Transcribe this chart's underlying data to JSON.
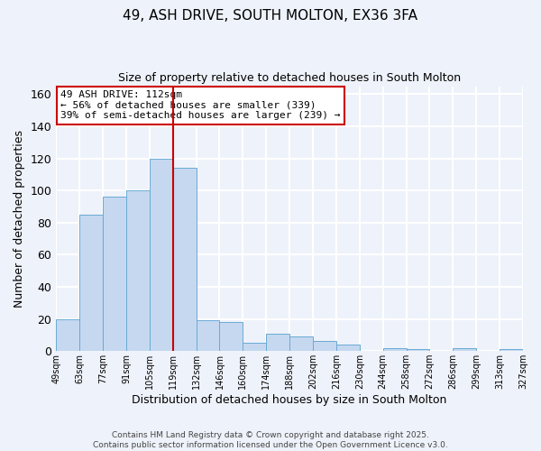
{
  "title": "49, ASH DRIVE, SOUTH MOLTON, EX36 3FA",
  "subtitle": "Size of property relative to detached houses in South Molton",
  "xlabel": "Distribution of detached houses by size in South Molton",
  "ylabel": "Number of detached properties",
  "bar_values": [
    20,
    85,
    96,
    100,
    120,
    114,
    19,
    18,
    5,
    11,
    9,
    6,
    4,
    0,
    2,
    1,
    0,
    2,
    0,
    1
  ],
  "bar_labels": [
    "49sqm",
    "63sqm",
    "77sqm",
    "91sqm",
    "105sqm",
    "119sqm",
    "132sqm",
    "146sqm",
    "160sqm",
    "174sqm",
    "188sqm",
    "202sqm",
    "216sqm",
    "230sqm",
    "244sqm",
    "258sqm",
    "272sqm",
    "286sqm",
    "299sqm",
    "313sqm",
    "327sqm"
  ],
  "bar_color": "#c5d8f0",
  "bar_edge_color": "#6aaad4",
  "vline_x": 4.5,
  "vline_color": "#cc0000",
  "annotation_title": "49 ASH DRIVE: 112sqm",
  "annotation_line1": "← 56% of detached houses are smaller (339)",
  "annotation_line2": "39% of semi-detached houses are larger (239) →",
  "annotation_box_color": "#ffffff",
  "annotation_box_edge": "#cc0000",
  "ylim": [
    0,
    165
  ],
  "yticks": [
    0,
    20,
    40,
    60,
    80,
    100,
    120,
    140,
    160
  ],
  "footer1": "Contains HM Land Registry data © Crown copyright and database right 2025.",
  "footer2": "Contains public sector information licensed under the Open Government Licence v3.0.",
  "background_color": "#eef2fa",
  "grid_color": "#ffffff"
}
